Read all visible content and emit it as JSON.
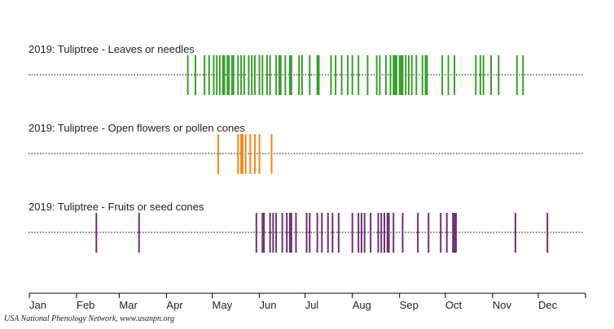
{
  "chart_data": {
    "type": "timeline",
    "year": 2019,
    "x_axis": {
      "type": "month",
      "months": [
        "Jan",
        "Feb",
        "Mar",
        "Apr",
        "May",
        "Jun",
        "Jul",
        "Aug",
        "Sep",
        "Oct",
        "Nov",
        "Dec"
      ],
      "domain_days": [
        1,
        366
      ]
    },
    "credit": "USA National Phenology Network, www.usanpn.org",
    "series": [
      {
        "name": "2019: Tuliptree - Leaves or needles",
        "color": "#3a9e2d",
        "days": [
          105,
          110,
          116,
          119,
          122,
          124,
          126,
          128,
          129,
          131,
          132,
          134,
          135,
          138,
          140,
          142,
          145,
          147,
          149,
          152,
          154,
          157,
          159,
          163,
          165,
          166,
          169,
          172,
          173,
          178,
          180,
          185,
          190,
          191,
          199,
          202,
          206,
          210,
          213,
          217,
          223,
          229,
          231,
          235,
          238,
          240,
          241,
          242,
          244,
          245,
          246,
          248,
          250,
          252,
          255,
          259,
          261,
          262,
          272,
          276,
          280,
          294,
          297,
          299,
          304,
          309,
          321,
          325
        ]
      },
      {
        "name": "2019: Tuliptree - Open flowers or pollen cones",
        "color": "#f0871a",
        "days": [
          125,
          138,
          140,
          141,
          143,
          146,
          149,
          152,
          160
        ]
      },
      {
        "name": "2019: Tuliptree - Fruits or seed cones",
        "color": "#6d2f73",
        "days": [
          45,
          73,
          150,
          154,
          155,
          159,
          161,
          163,
          167,
          170,
          172,
          173,
          176,
          183,
          185,
          190,
          193,
          197,
          200,
          204,
          213,
          217,
          219,
          221,
          225,
          230,
          232,
          234,
          236,
          237,
          240,
          246,
          256,
          263,
          271,
          275,
          279,
          280,
          281,
          320,
          341
        ]
      }
    ]
  }
}
